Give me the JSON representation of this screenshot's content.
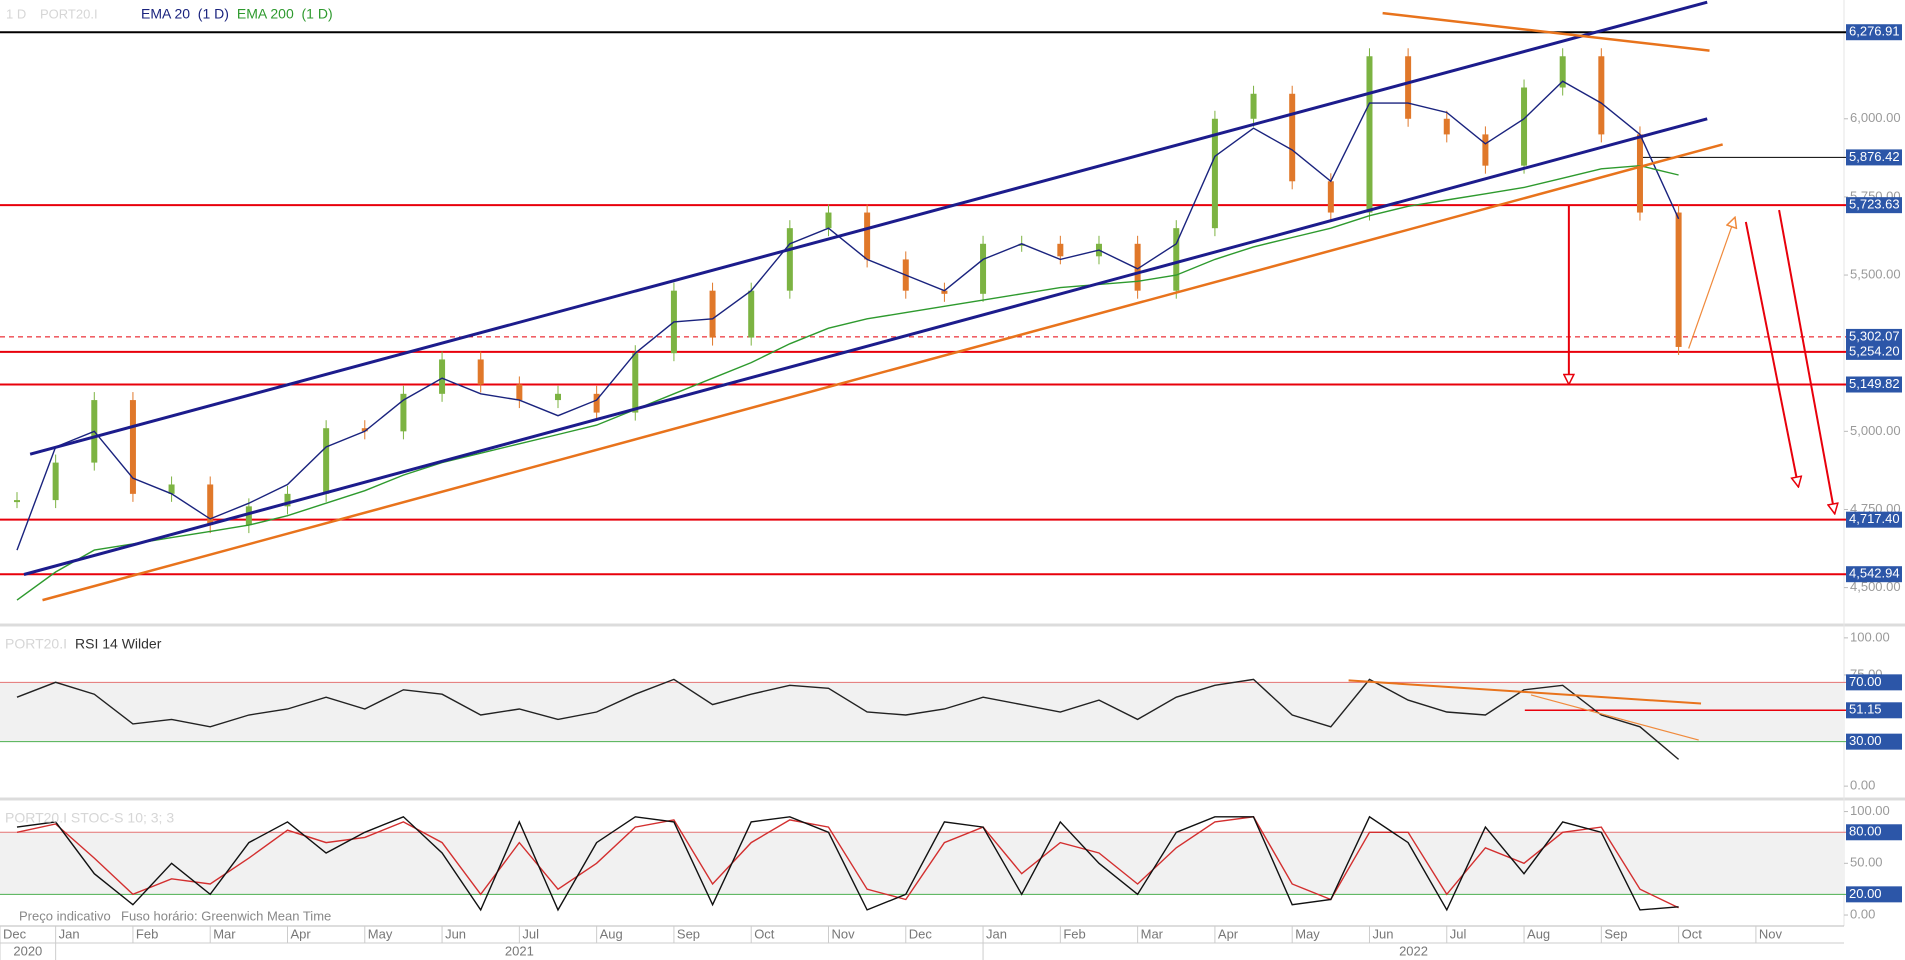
{
  "chart_data": [
    {
      "type": "line",
      "title": "1 D",
      "symbol": "PORT20.I",
      "x": [
        0.5,
        1,
        1.5,
        2,
        2.5,
        3,
        3.5,
        4,
        4.5,
        5,
        5.5,
        6,
        6.5,
        7,
        7.5,
        8,
        8.5,
        9,
        9.5,
        10,
        10.5,
        11,
        11.5,
        12,
        12.5,
        13,
        13.5,
        14,
        14.5,
        15,
        15.5,
        16,
        16.5,
        17,
        17.5,
        18,
        18.5,
        19,
        19.5,
        20,
        20.5,
        21,
        21.5,
        22
      ],
      "xlim": [
        0.28,
        24.14
      ],
      "ylim": [
        4390,
        6380
      ],
      "yticks": [
        {
          "value": 6000,
          "label": "6,000.00"
        },
        {
          "value": 5750,
          "label": "5,750.00"
        },
        {
          "value": 5500,
          "label": "5,500.00"
        },
        {
          "value": 5000,
          "label": "5,000.00"
        },
        {
          "value": 4750,
          "label": "4,750.00"
        },
        {
          "value": 4500,
          "label": "4,500.00"
        }
      ],
      "series": [
        {
          "kind": "bars",
          "up_color": "#7cb342",
          "down_color": "#e0782a",
          "values": [
            4780,
            4900,
            5100,
            4800,
            4830,
            4700,
            4760,
            4800,
            5010,
            5000,
            5120,
            5230,
            5150,
            5100,
            5120,
            5060,
            5250,
            5450,
            5300,
            5450,
            5650,
            5700,
            5550,
            5450,
            5440,
            5600,
            5600,
            5560,
            5600,
            5450,
            5650,
            6000,
            6080,
            5800,
            5700,
            6200,
            6000,
            5950,
            5850,
            6100,
            6200,
            5950,
            5700,
            5270
          ]
        },
        {
          "name": "EMA 20  (1 D)",
          "kind": "line",
          "color": "#1a237e",
          "values": [
            4620,
            4950,
            5000,
            4850,
            4800,
            4720,
            4770,
            4830,
            4950,
            5000,
            5100,
            5170,
            5120,
            5100,
            5050,
            5100,
            5250,
            5350,
            5360,
            5450,
            5600,
            5650,
            5550,
            5500,
            5450,
            5550,
            5600,
            5550,
            5580,
            5520,
            5600,
            5880,
            5970,
            5900,
            5800,
            6050,
            6050,
            6020,
            5920,
            6000,
            6120,
            6050,
            5950,
            5680
          ]
        },
        {
          "name": "EMA 200  (1 D)",
          "kind": "line",
          "color": "#2e9a2e",
          "values": [
            4460,
            4550,
            4620,
            4640,
            4660,
            4680,
            4700,
            4730,
            4770,
            4810,
            4860,
            4900,
            4930,
            4960,
            4990,
            5020,
            5070,
            5120,
            5170,
            5220,
            5280,
            5330,
            5360,
            5380,
            5400,
            5420,
            5440,
            5460,
            5470,
            5480,
            5500,
            5550,
            5590,
            5620,
            5650,
            5690,
            5720,
            5740,
            5760,
            5780,
            5810,
            5840,
            5850,
            5820
          ]
        }
      ],
      "level_label_color": "#2c56a8",
      "levels": [
        {
          "value": 6276.91,
          "label": "6,276.91",
          "color": "#000000",
          "width": 2
        },
        {
          "value": 5876.42,
          "label": "5,876.42",
          "color": "#000000",
          "width": 1,
          "start": 21.53
        },
        {
          "value": 5723.63,
          "label": "5,723.63",
          "color": "#e8000b",
          "width": 2
        },
        {
          "value": 5302.07,
          "label": "5,302.07",
          "color": "#e8000b",
          "width": 1,
          "dashed": true
        },
        {
          "value": 5254.2,
          "label": "5,254.20",
          "color": "#e8000b",
          "width": 2
        },
        {
          "value": 5149.82,
          "label": "5,149.82",
          "color": "#e8000b",
          "width": 2
        },
        {
          "value": 4717.4,
          "label": "4,717.40",
          "color": "#e8000b",
          "width": 2
        },
        {
          "value": 4542.94,
          "label": "4,542.94",
          "color": "#e8000b",
          "width": 2
        }
      ],
      "trendlines": [
        {
          "color": "#1c1c8c",
          "width": 3,
          "x": [
            0.67,
            22.37
          ],
          "y": [
            4927,
            6373
          ]
        },
        {
          "color": "#1c1c8c",
          "width": 3,
          "x": [
            0.59,
            22.37
          ],
          "y": [
            4542,
            6000
          ]
        },
        {
          "color": "#e8731c",
          "width": 2.5,
          "x": [
            0.83,
            22.57
          ],
          "y": [
            4460,
            5918
          ]
        },
        {
          "color": "#e8731c",
          "width": 2.5,
          "x": [
            18.17,
            22.4
          ],
          "y": [
            6338,
            6218
          ]
        },
        {
          "color": "#e8000b",
          "width": 2,
          "arrow": true,
          "x": [
            20.58,
            20.58
          ],
          "y": [
            5723.63,
            5149.82
          ]
        },
        {
          "color": "#e8000b",
          "width": 2,
          "arrow": true,
          "x": [
            22.87,
            23.55
          ],
          "y": [
            5670,
            4822
          ]
        },
        {
          "color": "#e8000b",
          "width": 2,
          "arrow": true,
          "x": [
            23.3,
            24.02
          ],
          "y": [
            5708,
            4736
          ]
        },
        {
          "color": "#f08a3c",
          "width": 1.2,
          "arrow": true,
          "x": [
            22.13,
            22.73
          ],
          "y": [
            5265,
            5685
          ]
        }
      ]
    },
    {
      "type": "line",
      "symbol": "PORT20.I",
      "title": "RSI 14 Wilder",
      "x": [
        0.5,
        1,
        1.5,
        2,
        2.5,
        3,
        3.5,
        4,
        4.5,
        5,
        5.5,
        6,
        6.5,
        7,
        7.5,
        8,
        8.5,
        9,
        9.5,
        10,
        10.5,
        11,
        11.5,
        12,
        12.5,
        13,
        13.5,
        14,
        14.5,
        15,
        15.5,
        16,
        16.5,
        17,
        17.5,
        18,
        18.5,
        19,
        19.5,
        20,
        20.5,
        21,
        21.5,
        22
      ],
      "xlim": [
        0.28,
        24.14
      ],
      "ylim": [
        -8,
        108
      ],
      "yticks": [
        {
          "value": 100,
          "label": "100.00"
        },
        {
          "value": 75,
          "label": "75.00"
        },
        {
          "value": 0,
          "label": "0.00"
        }
      ],
      "band": [
        30,
        70
      ],
      "band_color": "#f1f1f1",
      "series": [
        {
          "kind": "line",
          "color": "#222222",
          "values": [
            60,
            70,
            62,
            42,
            45,
            40,
            48,
            52,
            60,
            52,
            65,
            62,
            48,
            52,
            45,
            50,
            62,
            72,
            55,
            62,
            68,
            66,
            50,
            48,
            52,
            60,
            55,
            50,
            58,
            45,
            60,
            68,
            72,
            48,
            40,
            72,
            58,
            50,
            48,
            65,
            68,
            48,
            40,
            18
          ]
        }
      ],
      "level_label_color": "#2c56a8",
      "levels": [
        {
          "value": 70,
          "label": "70.00",
          "color": "#e57373",
          "width": 1
        },
        {
          "value": 51.15,
          "label": "51.15",
          "color": "#e8000b",
          "width": 1.5,
          "start": 20.01
        },
        {
          "value": 30,
          "label": "30.00",
          "color": "#4caf50",
          "width": 1
        }
      ],
      "trendlines": [
        {
          "color": "#e8731c",
          "width": 2,
          "x": [
            17.73,
            22.29
          ],
          "y": [
            71.3,
            55.7
          ]
        },
        {
          "color": "#f08a3c",
          "width": 1.2,
          "x": [
            20.09,
            22.26
          ],
          "y": [
            61.5,
            31.1
          ]
        }
      ]
    },
    {
      "type": "line",
      "title": "PORT20.I STOC-S 10; 3; 3",
      "x": [
        0.5,
        1,
        1.5,
        2,
        2.5,
        3,
        3.5,
        4,
        4.5,
        5,
        5.5,
        6,
        6.5,
        7,
        7.5,
        8,
        8.5,
        9,
        9.5,
        10,
        10.5,
        11,
        11.5,
        12,
        12.5,
        13,
        13.5,
        14,
        14.5,
        15,
        15.5,
        16,
        16.5,
        17,
        17.5,
        18,
        18.5,
        19,
        19.5,
        20,
        20.5,
        21,
        21.5,
        22
      ],
      "xlim": [
        0.28,
        24.14
      ],
      "ylim": [
        -10.6,
        111.2
      ],
      "yticks": [
        {
          "value": 100,
          "label": "100.00"
        },
        {
          "value": 50,
          "label": "50.00"
        },
        {
          "value": 0,
          "label": "0.00"
        }
      ],
      "band": [
        20,
        80
      ],
      "band_color": "#f1f1f1",
      "series": [
        {
          "kind": "line",
          "color": "#d32f2f",
          "values": [
            80,
            88,
            55,
            20,
            35,
            30,
            55,
            82,
            70,
            75,
            90,
            70,
            20,
            70,
            25,
            50,
            85,
            92,
            30,
            70,
            92,
            85,
            25,
            15,
            70,
            85,
            40,
            70,
            60,
            30,
            65,
            90,
            95,
            30,
            15,
            80,
            80,
            20,
            65,
            50,
            80,
            85,
            25,
            7
          ]
        },
        {
          "kind": "line",
          "color": "#111111",
          "values": [
            85,
            90,
            40,
            10,
            50,
            20,
            70,
            90,
            60,
            80,
            95,
            60,
            5,
            90,
            5,
            70,
            95,
            90,
            10,
            90,
            95,
            80,
            5,
            20,
            90,
            85,
            20,
            90,
            50,
            20,
            80,
            95,
            95,
            10,
            15,
            95,
            70,
            5,
            85,
            40,
            90,
            80,
            5,
            8
          ]
        }
      ],
      "level_label_color": "#2c56a8",
      "levels": [
        {
          "value": 80,
          "label": "80.00",
          "color": "#e57373",
          "width": 1
        },
        {
          "value": 20,
          "label": "20.00",
          "color": "#4caf50",
          "width": 1
        }
      ],
      "trendlines": [],
      "xticks": [
        {
          "value": 0.28,
          "label": "Dec"
        },
        {
          "value": 1,
          "label": "Jan"
        },
        {
          "value": 2,
          "label": "Feb"
        },
        {
          "value": 3,
          "label": "Mar"
        },
        {
          "value": 4,
          "label": "Apr"
        },
        {
          "value": 5,
          "label": "May"
        },
        {
          "value": 6,
          "label": "Jun"
        },
        {
          "value": 7,
          "label": "Jul"
        },
        {
          "value": 8,
          "label": "Aug"
        },
        {
          "value": 9,
          "label": "Sep"
        },
        {
          "value": 10,
          "label": "Oct"
        },
        {
          "value": 11,
          "label": "Nov"
        },
        {
          "value": 12,
          "label": "Dec"
        },
        {
          "value": 13,
          "label": "Jan"
        },
        {
          "value": 14,
          "label": "Feb"
        },
        {
          "value": 15,
          "label": "Mar"
        },
        {
          "value": 16,
          "label": "Apr"
        },
        {
          "value": 17,
          "label": "May"
        },
        {
          "value": 18,
          "label": "Jun"
        },
        {
          "value": 19,
          "label": "Jul"
        },
        {
          "value": 20,
          "label": "Aug"
        },
        {
          "value": 21,
          "label": "Sep"
        },
        {
          "value": 22,
          "label": "Oct"
        },
        {
          "value": 23,
          "label": "Nov"
        }
      ],
      "year_ticks": [
        {
          "value": 0.28,
          "label": "2020"
        },
        {
          "value": 1,
          "label": "2021"
        },
        {
          "value": 13,
          "label": "2022"
        }
      ]
    }
  ],
  "footer": {
    "note": "Preço indicativo",
    "timezone": "Fuso horário: Greenwich Mean Time"
  }
}
